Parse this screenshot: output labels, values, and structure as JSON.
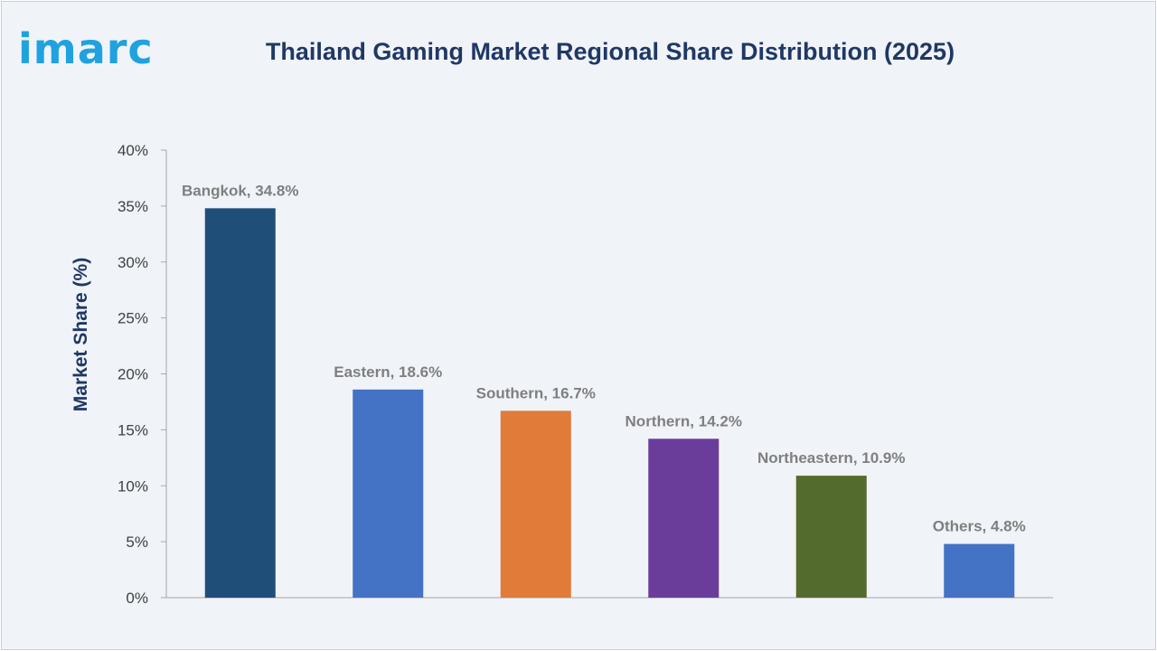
{
  "brand": {
    "logo_text": "imarc"
  },
  "chart_data": {
    "type": "bar",
    "title": "Thailand Gaming Market Regional Share Distribution (2025)",
    "xlabel": "",
    "ylabel": "Market Share (%)",
    "ylim": [
      0,
      40
    ],
    "yticks": [
      0,
      5,
      10,
      15,
      20,
      25,
      30,
      35,
      40
    ],
    "ytick_suffix": "%",
    "grid": false,
    "legend": "none",
    "categories": [
      "Bangkok",
      "Eastern",
      "Southern",
      "Northern",
      "Northeastern",
      "Others"
    ],
    "values": [
      34.8,
      18.6,
      16.7,
      14.2,
      10.9,
      4.8
    ],
    "data_labels": [
      "Bangkok, 34.8%",
      "Eastern, 18.6%",
      "Southern, 16.7%",
      "Northern, 14.2%",
      "Northeastern, 10.9%",
      "Others, 4.8%"
    ],
    "colors": [
      "#1f4e79",
      "#4472c4",
      "#e07b39",
      "#6a3d9a",
      "#546b2e",
      "#4472c4"
    ]
  }
}
